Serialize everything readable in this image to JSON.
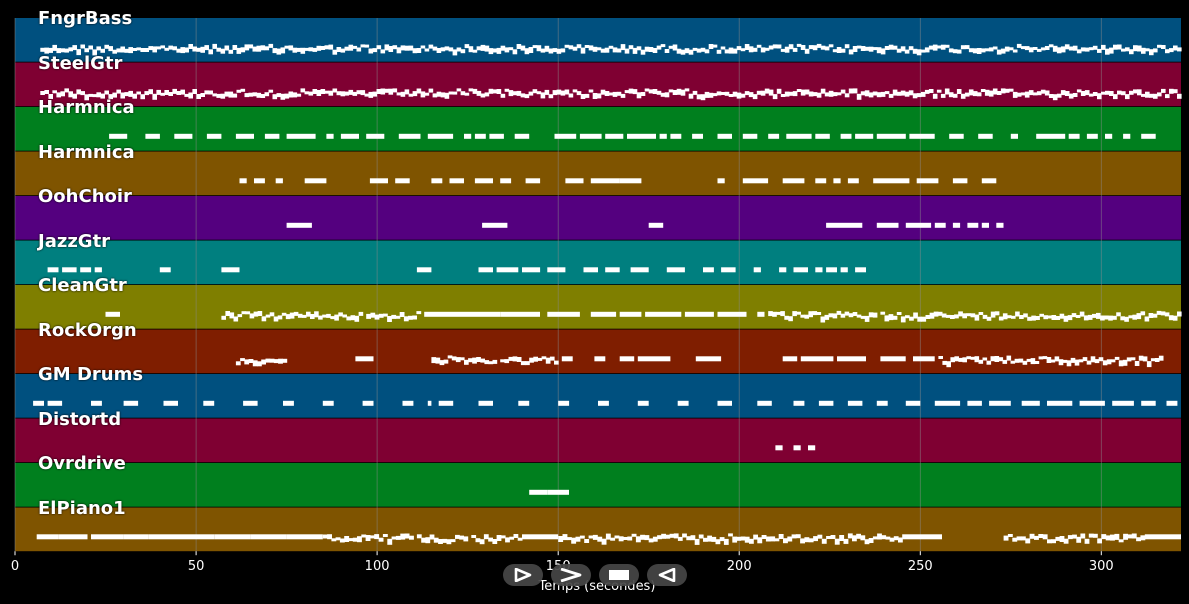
{
  "player": {
    "axis_label": "Temps (secondes)",
    "x_ticks": [
      "0",
      "50",
      "100",
      "150",
      "200",
      "250",
      "300"
    ],
    "controls": [
      {
        "name": "play",
        "icon": "play-icon"
      },
      {
        "name": "fast-forward",
        "icon": "fast-forward-icon"
      },
      {
        "name": "stop",
        "icon": "stop-icon"
      },
      {
        "name": "rewind",
        "icon": "rewind-icon"
      }
    ]
  },
  "colors": {
    "background": "#000000",
    "gridline": "#8a8a8a",
    "note": "#ffffff"
  },
  "chart_data": {
    "type": "piano-roll",
    "xlabel": "Temps (secondes)",
    "xlim": [
      0,
      322
    ],
    "x_ticks": [
      0,
      50,
      100,
      150,
      200,
      250,
      300
    ],
    "grid": true,
    "tracks": [
      {
        "name": "FngrBass",
        "color": "#00507f",
        "segments": [
          [
            7,
            322
          ]
        ]
      },
      {
        "name": "SteelGtr",
        "color": "#7f0032",
        "segments": [
          [
            7,
            322
          ]
        ]
      },
      {
        "name": "Harmnica",
        "color": "#007f1e",
        "segments": [
          [
            26,
            31
          ],
          [
            36,
            40
          ],
          [
            44,
            49
          ],
          [
            53,
            57
          ],
          [
            61,
            66
          ],
          [
            69,
            73
          ],
          [
            75,
            83
          ],
          [
            86,
            88
          ],
          [
            90,
            95
          ],
          [
            97,
            102
          ],
          [
            106,
            112
          ],
          [
            114,
            121
          ],
          [
            124,
            126
          ],
          [
            127,
            130
          ],
          [
            131,
            135
          ],
          [
            138,
            142
          ],
          [
            149,
            155
          ],
          [
            156,
            162
          ],
          [
            163,
            168
          ],
          [
            169,
            177
          ],
          [
            178,
            180
          ],
          [
            181,
            184
          ],
          [
            187,
            190
          ],
          [
            194,
            198
          ],
          [
            201,
            205
          ],
          [
            208,
            211
          ],
          [
            213,
            220
          ],
          [
            221,
            225
          ],
          [
            228,
            231
          ],
          [
            232,
            237
          ],
          [
            238,
            246
          ],
          [
            247,
            254
          ],
          [
            258,
            262
          ],
          [
            266,
            270
          ],
          [
            275,
            277
          ],
          [
            282,
            290
          ],
          [
            291,
            294
          ],
          [
            296,
            299
          ],
          [
            301,
            303
          ],
          [
            306,
            308
          ],
          [
            311,
            315
          ]
        ]
      },
      {
        "name": "Harmnica",
        "color": "#7f5400",
        "segments": [
          [
            62,
            64
          ],
          [
            66,
            69
          ],
          [
            72,
            74
          ],
          [
            80,
            86
          ],
          [
            98,
            103
          ],
          [
            105,
            109
          ],
          [
            115,
            118
          ],
          [
            120,
            124
          ],
          [
            127,
            132
          ],
          [
            134,
            137
          ],
          [
            141,
            145
          ],
          [
            152,
            157
          ],
          [
            159,
            167
          ],
          [
            167,
            173
          ],
          [
            194,
            196
          ],
          [
            201,
            208
          ],
          [
            212,
            218
          ],
          [
            221,
            224
          ],
          [
            226,
            228
          ],
          [
            230,
            233
          ],
          [
            237,
            247
          ],
          [
            249,
            255
          ],
          [
            259,
            263
          ],
          [
            267,
            271
          ]
        ]
      },
      {
        "name": "OohChoir",
        "color": "#54007f",
        "segments": [
          [
            75,
            82
          ],
          [
            129,
            136
          ],
          [
            175,
            179
          ],
          [
            224,
            234
          ],
          [
            238,
            244
          ],
          [
            246,
            253
          ],
          [
            254,
            257
          ],
          [
            259,
            261
          ],
          [
            263,
            266
          ],
          [
            267,
            269
          ],
          [
            271,
            273
          ]
        ]
      },
      {
        "name": "JazzGtr",
        "color": "#007f7f",
        "segments": [
          [
            9,
            12
          ],
          [
            13,
            17
          ],
          [
            18,
            21
          ],
          [
            22,
            24
          ],
          [
            40,
            43
          ],
          [
            57,
            62
          ],
          [
            111,
            115
          ],
          [
            128,
            132
          ],
          [
            133,
            139
          ],
          [
            140,
            145
          ],
          [
            147,
            152
          ],
          [
            157,
            161
          ],
          [
            163,
            167
          ],
          [
            170,
            175
          ],
          [
            180,
            185
          ],
          [
            190,
            193
          ],
          [
            195,
            199
          ],
          [
            204,
            206
          ],
          [
            211,
            213
          ],
          [
            215,
            219
          ],
          [
            221,
            223
          ],
          [
            224,
            227
          ],
          [
            228,
            230
          ],
          [
            232,
            235
          ]
        ]
      },
      {
        "name": "CleanGtr",
        "color": "#7f7f00",
        "segments": [
          [
            25,
            29
          ],
          [
            57,
            77
          ],
          [
            77,
            96
          ],
          [
            97,
            112
          ],
          [
            113,
            124
          ],
          [
            124,
            134
          ],
          [
            134,
            145
          ],
          [
            147,
            156
          ],
          [
            159,
            166
          ],
          [
            167,
            173
          ],
          [
            174,
            184
          ],
          [
            185,
            193
          ],
          [
            194,
            202
          ],
          [
            205,
            207
          ],
          [
            208,
            238
          ],
          [
            239,
            265
          ],
          [
            265,
            322
          ]
        ]
      },
      {
        "name": "RockOrgn",
        "color": "#7f1e00",
        "segments": [
          [
            61,
            75
          ],
          [
            94,
            99
          ],
          [
            115,
            133
          ],
          [
            134,
            150
          ],
          [
            151,
            154
          ],
          [
            160,
            163
          ],
          [
            167,
            171
          ],
          [
            172,
            181
          ],
          [
            188,
            195
          ],
          [
            212,
            216
          ],
          [
            217,
            226
          ],
          [
            227,
            235
          ],
          [
            239,
            246
          ],
          [
            248,
            254
          ],
          [
            255,
            317
          ]
        ]
      },
      {
        "name": "GM Drums",
        "color": "#00507f",
        "segments": [
          [
            5,
            8
          ],
          [
            9,
            13
          ],
          [
            21,
            24
          ],
          [
            30,
            34
          ],
          [
            41,
            45
          ],
          [
            52,
            55
          ],
          [
            63,
            67
          ],
          [
            74,
            77
          ],
          [
            85,
            88
          ],
          [
            96,
            99
          ],
          [
            107,
            110
          ],
          [
            114,
            115
          ],
          [
            117,
            121
          ],
          [
            128,
            132
          ],
          [
            139,
            142
          ],
          [
            150,
            153
          ],
          [
            161,
            164
          ],
          [
            172,
            175
          ],
          [
            183,
            186
          ],
          [
            194,
            198
          ],
          [
            205,
            209
          ],
          [
            215,
            218
          ],
          [
            222,
            226
          ],
          [
            230,
            234
          ],
          [
            238,
            241
          ],
          [
            246,
            250
          ],
          [
            254,
            261
          ],
          [
            263,
            267
          ],
          [
            269,
            275
          ],
          [
            278,
            283
          ],
          [
            285,
            292
          ],
          [
            294,
            301
          ],
          [
            303,
            309
          ],
          [
            311,
            315
          ],
          [
            318,
            321
          ]
        ]
      },
      {
        "name": "Distortd",
        "color": "#7f0032",
        "segments": [
          [
            210,
            212
          ],
          [
            215,
            217
          ],
          [
            219,
            221
          ]
        ]
      },
      {
        "name": "Ovrdrive",
        "color": "#007f1e",
        "segments": [
          [
            142,
            147
          ],
          [
            147,
            153
          ]
        ]
      },
      {
        "name": "ElPiano1",
        "color": "#7f5400",
        "segments": [
          [
            6,
            12
          ],
          [
            12,
            20
          ],
          [
            21,
            30
          ],
          [
            30,
            37
          ],
          [
            37,
            45
          ],
          [
            45,
            55
          ],
          [
            55,
            65
          ],
          [
            65,
            75
          ],
          [
            75,
            85
          ],
          [
            85,
            98
          ],
          [
            98,
            110
          ],
          [
            111,
            125
          ],
          [
            126,
            140
          ],
          [
            140,
            150
          ],
          [
            150,
            162
          ],
          [
            162,
            175
          ],
          [
            175,
            190
          ],
          [
            190,
            205
          ],
          [
            205,
            218
          ],
          [
            218,
            230
          ],
          [
            230,
            245
          ],
          [
            245,
            256
          ],
          [
            273,
            285
          ],
          [
            285,
            300
          ],
          [
            300,
            312
          ],
          [
            312,
            322
          ]
        ]
      }
    ]
  }
}
